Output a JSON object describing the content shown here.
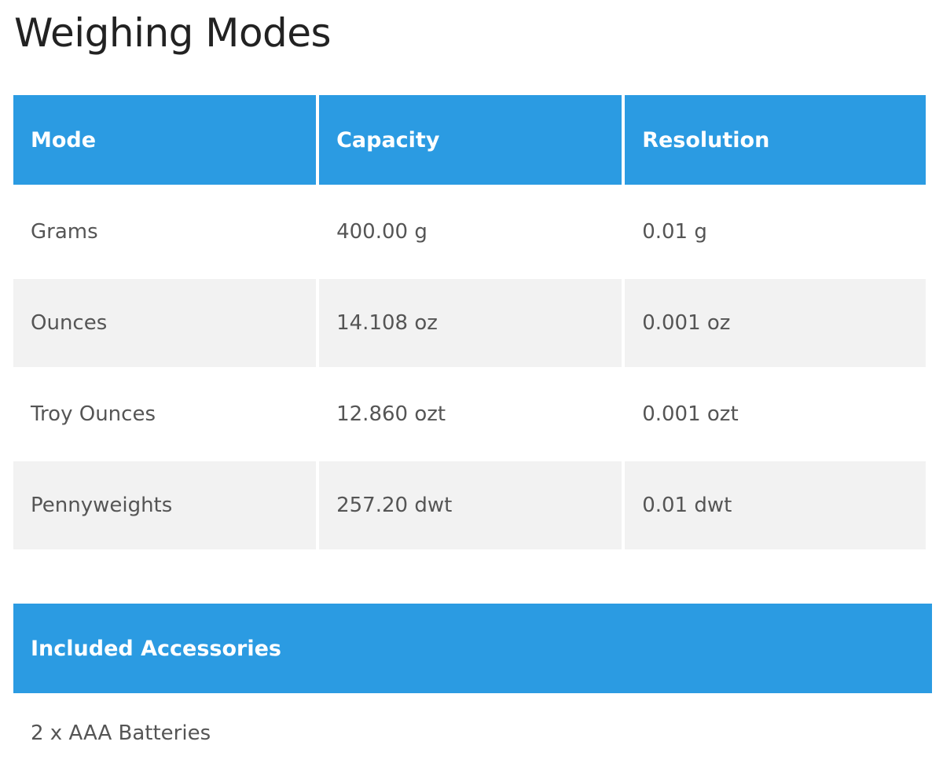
{
  "title": "Weighing Modes",
  "modes_table": {
    "headers": [
      "Mode",
      "Capacity",
      "Resolution"
    ],
    "rows": [
      [
        "Grams",
        "400.00 g",
        "0.01 g"
      ],
      [
        "Ounces",
        "14.108 oz",
        "0.001 oz"
      ],
      [
        "Troy Ounces",
        "12.860 ozt",
        "0.001 ozt"
      ],
      [
        "Pennyweights",
        "257.20 dwt",
        "0.01 dwt"
      ]
    ]
  },
  "accessories": {
    "header": "Included Accessories",
    "items": [
      "2 x AAA Batteries"
    ]
  },
  "colors": {
    "header_bg": "#2b9be2",
    "stripe_bg": "#f2f2f2"
  }
}
